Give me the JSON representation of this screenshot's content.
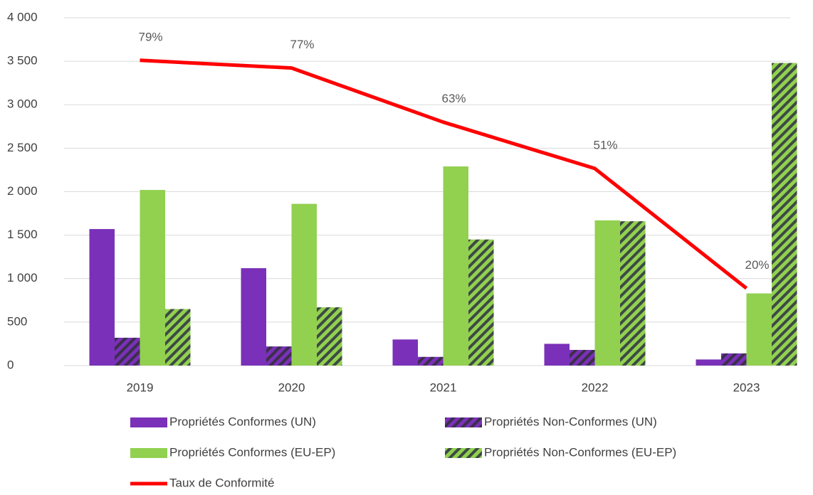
{
  "chart_data": {
    "type": "bar",
    "categories": [
      "2019",
      "2020",
      "2021",
      "2022",
      "2023"
    ],
    "series": [
      {
        "name": "Propriétés Conformes (UN)",
        "color": "#7a30b8",
        "pattern": "solid",
        "values": [
          1570,
          1120,
          300,
          250,
          70
        ]
      },
      {
        "name": "Propriétés Non-Conformes (UN)",
        "color": "#7a30b8",
        "pattern": "hatched",
        "values": [
          320,
          220,
          100,
          180,
          140
        ]
      },
      {
        "name": "Propriétés Conformes (EU-EP)",
        "color": "#92d050",
        "pattern": "solid",
        "values": [
          2020,
          1860,
          2290,
          1670,
          830
        ]
      },
      {
        "name": "Propriétés Non-Conformes (EU-EP)",
        "color": "#92d050",
        "pattern": "hatched",
        "values": [
          650,
          670,
          1450,
          1660,
          3480
        ]
      },
      {
        "name": "Taux de Conformité",
        "type": "line",
        "axis": "y2",
        "color": "#ff0000",
        "values": [
          79,
          77,
          63,
          51,
          20
        ],
        "value_labels": [
          "79%",
          "77%",
          "63%",
          "51%",
          "20%"
        ]
      }
    ],
    "ylim": [
      0,
      4000
    ],
    "yticks": [
      0,
      500,
      {
        "value": 1000,
        "label": "1 000"
      },
      {
        "value": 1500,
        "label": "1 500"
      },
      {
        "value": 2000,
        "label": "2 000"
      },
      {
        "value": 2500,
        "label": "2 500"
      },
      {
        "value": 3000,
        "label": "3 000"
      },
      {
        "value": 3500,
        "label": "3 500"
      },
      {
        "value": 4000,
        "label": "4 000"
      }
    ],
    "y2lim": [
      0,
      90
    ],
    "grid": true,
    "legend": "bottom"
  }
}
